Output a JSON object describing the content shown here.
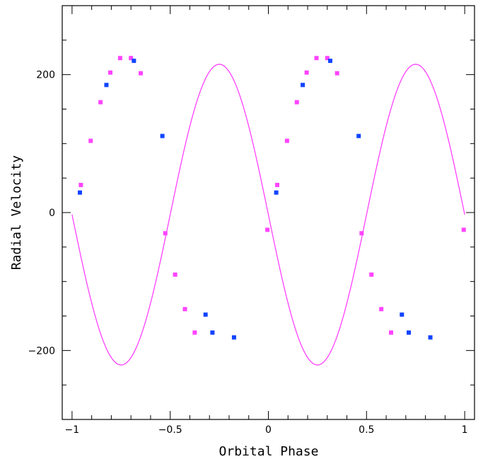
{
  "chart_data": {
    "type": "scatter",
    "xlabel": "Orbital Phase",
    "ylabel": "Radial Velocity",
    "xlim": [
      -1.05,
      1.05
    ],
    "ylim": [
      -300,
      300
    ],
    "grid": false,
    "xticks": [
      -1,
      -0.5,
      0,
      0.5,
      1
    ],
    "xtick_labels": [
      "−1",
      "−0.5",
      "0",
      "0.5",
      "1"
    ],
    "yticks": [
      -200,
      0,
      200
    ],
    "ytick_labels": [
      "−200",
      "0",
      "200"
    ],
    "fit_curve": {
      "type": "sinusoid",
      "color": "#ff33ff",
      "amplitude": 218,
      "offset": -3,
      "period": 1,
      "x_range": [
        -1,
        1
      ],
      "form": "offset - amplitude*sin(2*pi*x)"
    },
    "series": [
      {
        "color": "#ff44ff",
        "points": [
          [
            -0.955,
            40
          ],
          [
            -0.905,
            104
          ],
          [
            -0.855,
            160
          ],
          [
            -0.805,
            203
          ],
          [
            -0.755,
            224
          ],
          [
            -0.7,
            224
          ],
          [
            -0.65,
            202
          ],
          [
            -0.525,
            -30
          ],
          [
            -0.475,
            -90
          ],
          [
            -0.425,
            -140
          ],
          [
            -0.375,
            -174
          ],
          [
            -0.005,
            -25
          ],
          [
            0.045,
            40
          ],
          [
            0.095,
            104
          ],
          [
            0.145,
            160
          ],
          [
            0.195,
            203
          ],
          [
            0.245,
            224
          ],
          [
            0.3,
            224
          ],
          [
            0.35,
            202
          ],
          [
            0.475,
            -30
          ],
          [
            0.525,
            -90
          ],
          [
            0.575,
            -140
          ],
          [
            0.625,
            -174
          ],
          [
            0.995,
            -25
          ]
        ]
      },
      {
        "color": "#1144ff",
        "points": [
          [
            -0.96,
            29
          ],
          [
            -0.825,
            185
          ],
          [
            -0.685,
            220
          ],
          [
            -0.54,
            111
          ],
          [
            -0.32,
            -148
          ],
          [
            -0.285,
            -174
          ],
          [
            -0.175,
            -181
          ],
          [
            0.04,
            29
          ],
          [
            0.175,
            185
          ],
          [
            0.315,
            220
          ],
          [
            0.46,
            111
          ],
          [
            0.68,
            -148
          ],
          [
            0.715,
            -174
          ],
          [
            0.825,
            -181
          ]
        ]
      }
    ]
  }
}
